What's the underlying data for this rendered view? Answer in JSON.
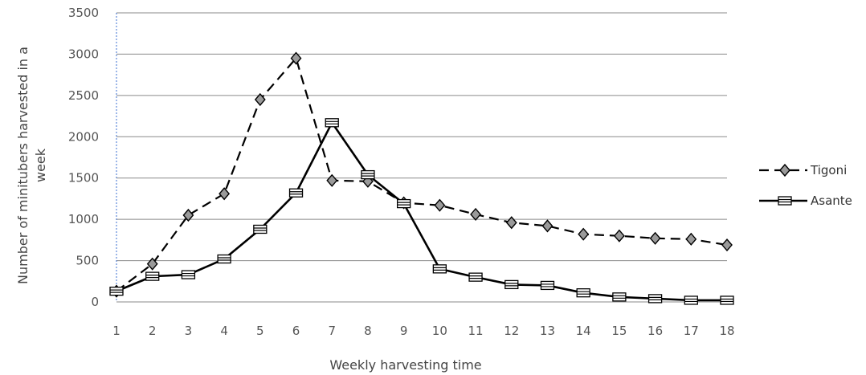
{
  "chart_data": {
    "type": "line",
    "title": "",
    "xlabel": "Weekly harvesting time",
    "ylabel_line1": "Number of minitubers harvested in a",
    "ylabel_line2": "week",
    "x": [
      1,
      2,
      3,
      4,
      5,
      6,
      7,
      8,
      9,
      10,
      11,
      12,
      13,
      14,
      15,
      16,
      17,
      18
    ],
    "ylim": [
      0,
      3500
    ],
    "yticks": [
      0,
      500,
      1000,
      1500,
      2000,
      2500,
      3000,
      3500
    ],
    "grid": true,
    "legend_position": "right",
    "series": [
      {
        "name": "Tigoni",
        "line_style": "dashed",
        "marker": "diamond",
        "color": "#000000",
        "values": [
          130,
          460,
          1050,
          1310,
          2450,
          2950,
          1470,
          1460,
          1200,
          1170,
          1060,
          960,
          920,
          820,
          800,
          770,
          760,
          690
        ]
      },
      {
        "name": "Asante",
        "line_style": "solid",
        "marker": "bar",
        "color": "#000000",
        "values": [
          130,
          310,
          330,
          520,
          880,
          1320,
          2170,
          1540,
          1190,
          400,
          300,
          210,
          200,
          110,
          60,
          40,
          20,
          20
        ]
      }
    ]
  }
}
